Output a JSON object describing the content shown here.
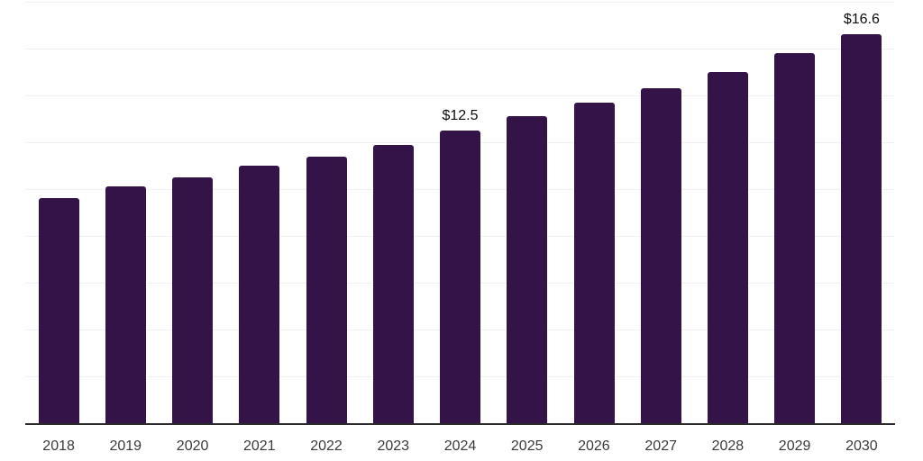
{
  "chart_data": {
    "type": "bar",
    "title": "",
    "xlabel": "",
    "ylabel": "",
    "categories": [
      "2018",
      "2019",
      "2020",
      "2021",
      "2022",
      "2023",
      "2024",
      "2025",
      "2026",
      "2027",
      "2028",
      "2029",
      "2030"
    ],
    "values": [
      9.6,
      10.1,
      10.5,
      11.0,
      11.4,
      11.9,
      12.5,
      13.1,
      13.7,
      14.3,
      15.0,
      15.8,
      16.6
    ],
    "data_labels": [
      "",
      "",
      "",
      "",
      "",
      "",
      "$12.5",
      "",
      "",
      "",
      "",
      "",
      "$16.6"
    ],
    "ylim": [
      0,
      18
    ],
    "y_tick_step": 2,
    "y_axis_labels_visible": false,
    "grid": "horizontal",
    "legend": "none",
    "colors": {
      "bar": "#331348",
      "gridline": "#f1f1f1",
      "axis_line": "#2b2b2b",
      "tick_label": "#3a3a3a",
      "data_label": "#0d0d0d",
      "background": "#ffffff"
    }
  }
}
